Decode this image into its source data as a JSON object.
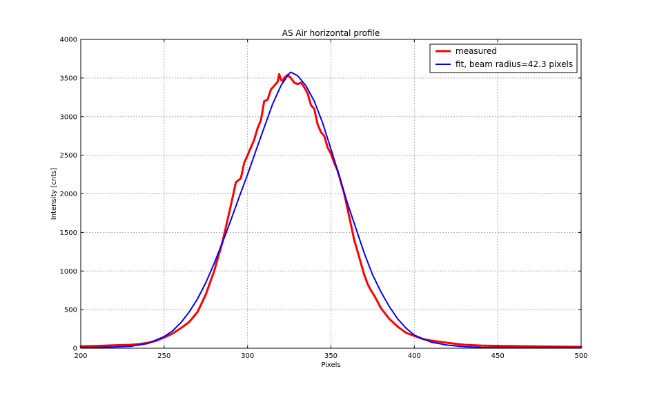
{
  "chart_data": {
    "type": "line",
    "title": "AS Air horizontal profile",
    "xlabel": "Pixels",
    "ylabel": "Intensity [cnts]",
    "xlim": [
      200,
      500
    ],
    "ylim": [
      0,
      4000
    ],
    "xticks": [
      200,
      250,
      300,
      350,
      400,
      450,
      500
    ],
    "yticks": [
      0,
      500,
      1000,
      1500,
      2000,
      2500,
      3000,
      3500,
      4000
    ],
    "grid": true,
    "legend_position": "top-right",
    "series": [
      {
        "name": "measured",
        "color": "#ff0000",
        "x": [
          200,
          210,
          220,
          230,
          235,
          240,
          245,
          250,
          255,
          260,
          265,
          270,
          275,
          280,
          285,
          290,
          293,
          296,
          298,
          300,
          302,
          304,
          306,
          308,
          310,
          312,
          314,
          316,
          318,
          319,
          320,
          321,
          322,
          324,
          326,
          328,
          330,
          332,
          334,
          336,
          338,
          340,
          342,
          344,
          346,
          348,
          350,
          352,
          354,
          356,
          358,
          360,
          362,
          364,
          366,
          368,
          370,
          372,
          374,
          376,
          378,
          380,
          385,
          390,
          395,
          400,
          405,
          410,
          420,
          430,
          440,
          450,
          460,
          470,
          480,
          490,
          500
        ],
        "y": [
          25,
          30,
          38,
          45,
          55,
          70,
          95,
          140,
          190,
          260,
          340,
          470,
          700,
          1000,
          1380,
          1850,
          2150,
          2200,
          2400,
          2500,
          2600,
          2700,
          2850,
          2950,
          3200,
          3220,
          3350,
          3400,
          3450,
          3550,
          3480,
          3460,
          3500,
          3540,
          3500,
          3440,
          3420,
          3440,
          3380,
          3300,
          3150,
          3100,
          2900,
          2800,
          2750,
          2600,
          2520,
          2400,
          2300,
          2150,
          2000,
          1800,
          1600,
          1400,
          1250,
          1100,
          950,
          830,
          750,
          680,
          600,
          520,
          380,
          280,
          200,
          160,
          120,
          100,
          70,
          45,
          35,
          30,
          28,
          25,
          22,
          20,
          18
        ]
      },
      {
        "name": "fit, beam radius=42.3 pixels",
        "color": "#0000ff",
        "x": [
          200,
          210,
          220,
          230,
          240,
          250,
          255,
          260,
          265,
          270,
          275,
          280,
          285,
          290,
          295,
          300,
          305,
          310,
          315,
          320,
          325,
          326,
          330,
          335,
          340,
          345,
          350,
          355,
          360,
          365,
          370,
          375,
          380,
          385,
          390,
          395,
          400,
          410,
          420,
          430,
          440,
          450,
          460,
          470,
          480,
          490,
          500
        ],
        "y": [
          10,
          12,
          15,
          25,
          60,
          150,
          225,
          330,
          470,
          640,
          850,
          1100,
          1370,
          1660,
          1960,
          2250,
          2560,
          2860,
          3160,
          3400,
          3560,
          3575,
          3530,
          3400,
          3200,
          2920,
          2580,
          2230,
          1870,
          1550,
          1230,
          950,
          730,
          540,
          380,
          260,
          170,
          80,
          40,
          20,
          12,
          10,
          10,
          10,
          10,
          10,
          10
        ]
      }
    ]
  }
}
